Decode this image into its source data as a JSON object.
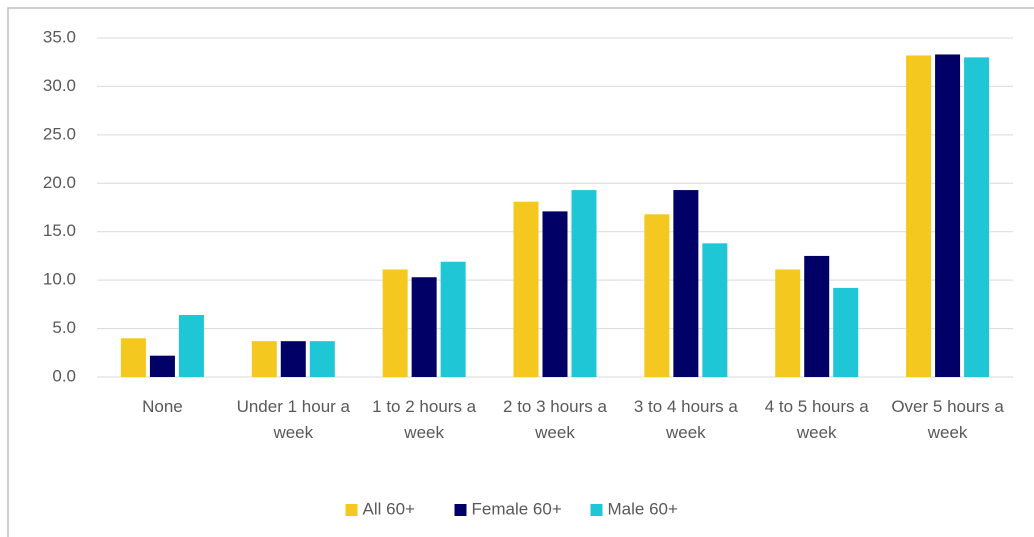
{
  "chart_data": {
    "type": "bar",
    "categories": [
      "None",
      "Under 1 hour a week",
      "1 to 2 hours a week",
      "2 to 3 hours a week",
      "3 to 4 hours a week",
      "4 to 5 hours a week",
      "Over 5 hours a week"
    ],
    "series": [
      {
        "name": "All 60+",
        "color": "#f5c81f",
        "values": [
          4.0,
          3.7,
          11.1,
          18.1,
          16.8,
          11.1,
          33.2
        ]
      },
      {
        "name": "Female 60+",
        "color": "#000066",
        "values": [
          2.2,
          3.7,
          10.3,
          17.1,
          19.3,
          12.5,
          33.3
        ]
      },
      {
        "name": "Male 60+",
        "color": "#1fc6d6",
        "values": [
          6.4,
          3.7,
          11.9,
          19.3,
          13.8,
          9.2,
          33.0
        ]
      }
    ],
    "ylim": [
      0,
      35
    ],
    "yticks": [
      {
        "value": 0,
        "label": "0.0"
      },
      {
        "value": 5,
        "label": "5.0"
      },
      {
        "value": 10,
        "label": "10.0"
      },
      {
        "value": 15,
        "label": "15.0"
      },
      {
        "value": 20,
        "label": "20.0"
      },
      {
        "value": 25,
        "label": "25.0"
      },
      {
        "value": 30,
        "label": "30.0"
      },
      {
        "value": 35,
        "label": "35.0"
      }
    ],
    "grid": true,
    "legend": "bottom"
  }
}
